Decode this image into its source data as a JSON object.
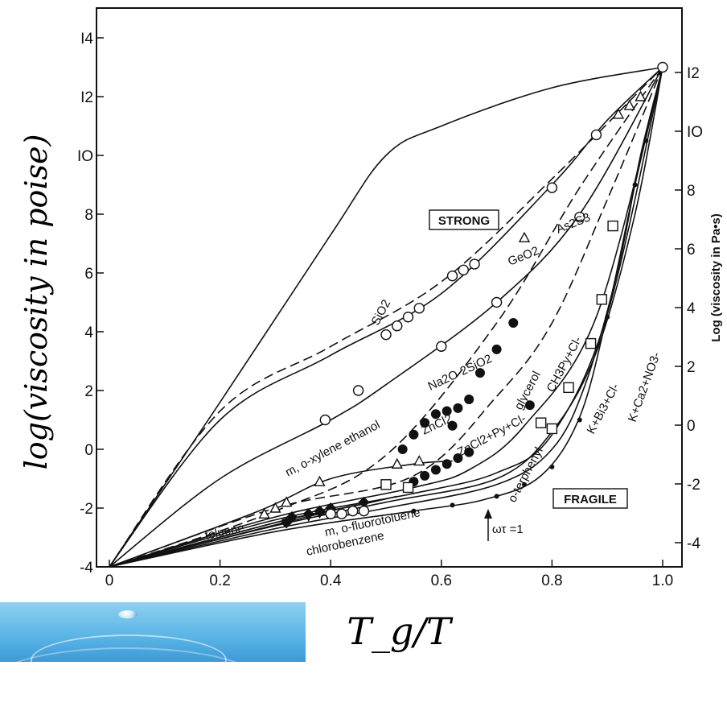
{
  "chart_data": {
    "type": "line",
    "xlabel": "T_g/T",
    "ylabel": "log(viscosity in poise)",
    "y2label": "Log (viscosity in Pa•s)",
    "xlim": [
      0,
      1.0
    ],
    "ylim": [
      -4,
      15
    ],
    "y2lim": [
      -5,
      14
    ],
    "x_ticks": [
      "0",
      "0.2",
      "0.4",
      "0.6",
      "0.8",
      "1.0"
    ],
    "y_ticks": [
      "-4",
      "-2",
      "0",
      "2",
      "4",
      "6",
      "8",
      "IO",
      "I2",
      "I4"
    ],
    "y2_ticks": [
      "-4",
      "-2",
      "0",
      "2",
      "4",
      "6",
      "8",
      "IO",
      "I2"
    ],
    "y_tick_values": [
      -4,
      -2,
      0,
      2,
      4,
      6,
      8,
      10,
      12,
      14
    ],
    "y2_tick_values": [
      -4,
      -2,
      0,
      2,
      4,
      6,
      8,
      10,
      12
    ],
    "grid": false,
    "strong_label": "STRONG",
    "fragile_label": "FRAGILE",
    "omega_label": "ωτ =1",
    "series": [
      {
        "name": "SiO2",
        "style": "solid",
        "marker": "open-circle",
        "x": [
          0,
          0.2,
          0.4,
          0.5,
          0.6,
          0.8,
          1.0
        ],
        "y": [
          -4,
          1.6,
          7.3,
          10.0,
          11.0,
          12.3,
          13.0
        ],
        "points_x": [
          0.5,
          0.52,
          0.54,
          0.56
        ],
        "points_y": [
          3.9,
          4.2,
          4.5,
          4.8
        ]
      },
      {
        "name": "GeO2",
        "style": "dashed",
        "marker": "open-circle",
        "x": [
          0,
          0.2,
          0.4,
          0.6,
          0.8,
          1.0
        ],
        "y": [
          -4,
          1.3,
          3.5,
          5.7,
          9.2,
          13.0
        ],
        "points_x": [
          0.62,
          0.64,
          0.66
        ],
        "points_y": [
          5.9,
          6.1,
          6.3
        ]
      },
      {
        "name": "As2S3",
        "style": "solid",
        "marker": "open-triangle",
        "x": [
          0,
          0.2,
          0.4,
          0.6,
          0.8,
          0.9,
          1.0
        ],
        "y": [
          -4,
          1.0,
          3.2,
          5.3,
          9.0,
          11.2,
          13.0
        ],
        "points_x": [
          0.75,
          0.92,
          0.94,
          0.96
        ],
        "points_y": [
          7.2,
          11.4,
          11.7,
          12.0
        ]
      },
      {
        "name": "Na2O·2SiO2",
        "style": "solid",
        "marker": "open-circle",
        "x": [
          0,
          0.2,
          0.4,
          0.5,
          0.7,
          0.85,
          1.0
        ],
        "y": [
          -4,
          -1.0,
          1.0,
          2.2,
          5.0,
          8.0,
          13.0
        ],
        "points_x": [
          0.39,
          0.45,
          0.6,
          0.7,
          0.8,
          0.85,
          0.88
        ],
        "points_y": [
          1.0,
          2.0,
          3.5,
          5.0,
          8.9,
          7.9,
          10.7
        ]
      },
      {
        "name": "ZnCl2",
        "style": "dashed",
        "marker": "filled-circle",
        "x": [
          0,
          0.3,
          0.5,
          0.7,
          0.85,
          1.0
        ],
        "y": [
          -4,
          -2.1,
          -0.2,
          4.3,
          8.9,
          13.0
        ],
        "points_x": [
          0.53,
          0.55,
          0.57,
          0.59,
          0.61,
          0.63
        ],
        "points_y": [
          0.0,
          0.5,
          0.9,
          1.2,
          1.3,
          1.4
        ]
      },
      {
        "name": "glycerol",
        "style": "dashed",
        "marker": "filled-circle",
        "x": [
          0,
          0.3,
          0.55,
          0.7,
          0.8,
          0.9,
          1.0
        ],
        "y": [
          -4,
          -2.0,
          -0.9,
          1.8,
          4.3,
          8.5,
          13.0
        ],
        "points_x": [
          0.62,
          0.65,
          0.67,
          0.7,
          0.73
        ],
        "points_y": [
          0.8,
          1.7,
          2.6,
          3.4,
          4.3
        ]
      },
      {
        "name": "ZnCl2+Py+Cl-",
        "style": "solid",
        "marker": "filled-circle",
        "x": [
          0,
          0.3,
          0.55,
          0.65,
          0.75,
          0.88,
          1.0
        ],
        "y": [
          -4,
          -2.3,
          -1.3,
          -0.7,
          0.8,
          4.5,
          13.0
        ],
        "points_x": [
          0.55,
          0.57,
          0.59,
          0.61,
          0.63,
          0.65,
          0.76
        ],
        "points_y": [
          -1.1,
          -0.9,
          -0.7,
          -0.5,
          -0.3,
          -0.1,
          1.5
        ]
      },
      {
        "name": "CH3Py+Cl-",
        "style": "solid",
        "marker": "filled-circle",
        "x": [
          0,
          0.3,
          0.55,
          0.7,
          0.8,
          0.9,
          1.0
        ],
        "y": [
          -4,
          -2.4,
          -1.5,
          -0.8,
          0.5,
          4.6,
          13.0
        ]
      },
      {
        "name": "K+Bi3+Cl-",
        "style": "solid",
        "marker": "open-square",
        "x": [
          0,
          0.3,
          0.5,
          0.7,
          0.8,
          0.88,
          0.95,
          1.0
        ],
        "y": [
          -4,
          -2.6,
          -1.8,
          -1.0,
          0.6,
          3.3,
          8.0,
          13.0
        ],
        "points_x": [
          0.5,
          0.54,
          0.78,
          0.8,
          0.83,
          0.87,
          0.89,
          0.91
        ],
        "points_y": [
          -1.2,
          -1.3,
          0.9,
          0.7,
          2.1,
          3.6,
          5.1,
          7.6
        ]
      },
      {
        "name": "K+Ca2+NO3-",
        "style": "solid",
        "marker": "filled-circle",
        "x": [
          0,
          0.3,
          0.5,
          0.7,
          0.8,
          0.86,
          0.92,
          0.96,
          1.0
        ],
        "y": [
          -4,
          -2.7,
          -2.0,
          -1.2,
          0.0,
          2.2,
          6.2,
          10.0,
          13.0
        ]
      },
      {
        "name": "o-terphenyl",
        "style": "solid",
        "marker": "small-filled-circle",
        "x": [
          0,
          0.3,
          0.55,
          0.68,
          0.78,
          0.85,
          0.9,
          0.95,
          1.0
        ],
        "y": [
          -4,
          -2.8,
          -2.1,
          -1.7,
          -0.9,
          1.1,
          4.6,
          9.0,
          13.0
        ],
        "points_x": [
          0.55,
          0.62,
          0.7,
          0.75,
          0.8,
          0.85,
          0.9,
          0.95,
          0.97
        ],
        "points_y": [
          -2.1,
          -1.9,
          -1.6,
          -1.2,
          -0.6,
          1.0,
          4.5,
          9.0,
          10.5
        ]
      },
      {
        "name": "m, o-xylene ethanol",
        "style": "solid",
        "marker": "open-triangle",
        "x": [
          0,
          0.27,
          0.4,
          0.55,
          0.62
        ],
        "y": [
          -4,
          -2.1,
          -1.0,
          -0.5,
          -0.4
        ],
        "points_x": [
          0.28,
          0.3,
          0.32,
          0.38,
          0.52,
          0.56
        ],
        "points_y": [
          -2.2,
          -2.0,
          -1.8,
          -1.1,
          -0.5,
          -0.4
        ]
      },
      {
        "name": "toluene",
        "style": "solid",
        "marker": "filled-diamond",
        "x": [
          0,
          0.32,
          0.45,
          0.52
        ],
        "y": [
          -4,
          -2.4,
          -1.9,
          -1.6
        ],
        "points_x": [
          0.32,
          0.33,
          0.36,
          0.38,
          0.4,
          0.46
        ],
        "points_y": [
          -2.5,
          -2.3,
          -2.2,
          -2.1,
          -2.0,
          -1.8
        ]
      },
      {
        "name": "m, o-fluorotoluene",
        "style": "solid",
        "marker": "open-circle",
        "x": [
          0,
          0.4,
          0.46
        ],
        "y": [
          -4,
          -2.1,
          -1.9
        ],
        "points_x": [
          0.4,
          0.42,
          0.44,
          0.46
        ],
        "points_y": [
          -2.2,
          -2.2,
          -2.1,
          -2.1
        ]
      },
      {
        "name": "chlorobenzene",
        "style": "solid",
        "marker": "filled-triangle",
        "x": [
          0,
          0.32,
          0.4
        ],
        "y": [
          -4,
          -2.4,
          -2.2
        ],
        "points_x": [
          0.32,
          0.36,
          0.38
        ],
        "points_y": [
          -2.5,
          -2.3,
          -2.2
        ]
      }
    ]
  }
}
